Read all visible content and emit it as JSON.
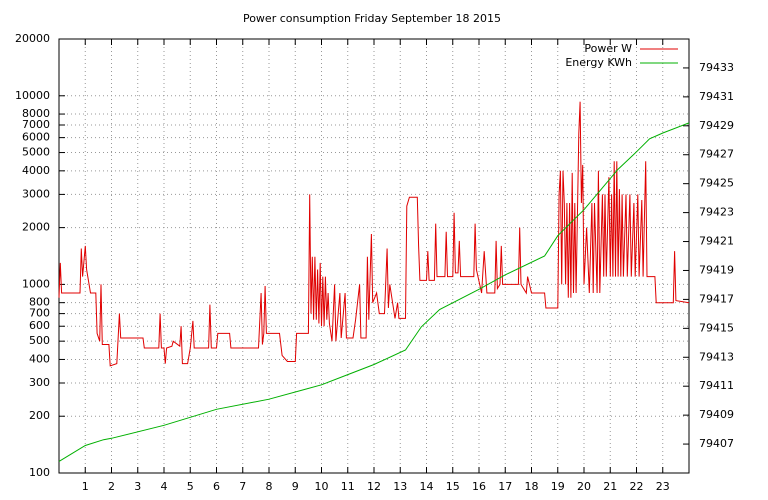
{
  "chart_data": {
    "type": "line",
    "title": "Power consumption Friday September 18 2015",
    "xlim": [
      0,
      24
    ],
    "xticks": [
      1,
      2,
      3,
      4,
      5,
      6,
      7,
      8,
      9,
      10,
      11,
      12,
      13,
      14,
      15,
      16,
      17,
      18,
      19,
      20,
      21,
      22,
      23
    ],
    "ylim": [
      100,
      20000
    ],
    "log_y": true,
    "yticks": [
      100,
      200,
      300,
      400,
      500,
      600,
      700,
      800,
      1000,
      2000,
      3000,
      4000,
      5000,
      6000,
      7000,
      8000,
      10000,
      20000
    ],
    "y2lim": [
      79405,
      79435
    ],
    "y2ticks": [
      79407,
      79409,
      79411,
      79413,
      79415,
      79417,
      79419,
      79421,
      79423,
      79425,
      79427,
      79429,
      79431,
      79433
    ],
    "grid": true,
    "legend": "top-right",
    "series": [
      {
        "name": "Power W",
        "color": "#e00000",
        "x": [
          0,
          0.05,
          0.1,
          0.8,
          0.85,
          0.9,
          1.0,
          1.05,
          1.2,
          1.4,
          1.45,
          1.55,
          1.6,
          1.65,
          1.9,
          1.95,
          2.2,
          2.3,
          2.35,
          3.2,
          3.25,
          3.8,
          3.85,
          3.9,
          4.0,
          4.05,
          4.1,
          4.3,
          4.35,
          4.6,
          4.65,
          4.7,
          4.9,
          5.0,
          5.1,
          5.15,
          5.7,
          5.75,
          5.8,
          6.0,
          6.05,
          6.5,
          6.55,
          7.6,
          7.7,
          7.75,
          7.8,
          7.85,
          7.9,
          8.4,
          8.5,
          8.7,
          9.0,
          9.05,
          9.5,
          9.55,
          9.6,
          9.65,
          9.7,
          9.75,
          9.8,
          9.85,
          9.9,
          9.95,
          10.0,
          10.05,
          10.1,
          10.15,
          10.2,
          10.25,
          10.3,
          10.4,
          10.5,
          10.55,
          10.7,
          10.75,
          10.9,
          10.95,
          11.2,
          11.3,
          11.45,
          11.5,
          11.7,
          11.75,
          11.8,
          11.9,
          11.95,
          12.1,
          12.2,
          12.4,
          12.5,
          12.55,
          12.6,
          12.8,
          12.9,
          12.95,
          13.2,
          13.25,
          13.35,
          13.65,
          13.7,
          13.75,
          14.0,
          14.05,
          14.1,
          14.3,
          14.35,
          14.4,
          14.7,
          14.75,
          14.8,
          15.0,
          15.05,
          15.1,
          15.2,
          15.25,
          15.3,
          15.8,
          15.85,
          15.9,
          16.1,
          16.2,
          16.3,
          16.6,
          16.65,
          16.7,
          16.8,
          16.85,
          16.9,
          17.5,
          17.55,
          17.6,
          17.8,
          17.85,
          18.0,
          18.5,
          18.55,
          19.0,
          19.05,
          19.1,
          19.15,
          19.2,
          19.25,
          19.3,
          19.35,
          19.4,
          19.45,
          19.5,
          19.55,
          19.6,
          19.65,
          19.7,
          19.8,
          19.85,
          19.9,
          19.95,
          20.0,
          20.1,
          20.2,
          20.3,
          20.35,
          20.4,
          20.5,
          20.55,
          20.6,
          20.7,
          20.75,
          20.8,
          20.85,
          20.95,
          21.0,
          21.05,
          21.1,
          21.15,
          21.2,
          21.25,
          21.3,
          21.35,
          21.4,
          21.45,
          21.5,
          21.6,
          21.65,
          21.75,
          21.8,
          21.9,
          21.95,
          22.05,
          22.1,
          22.2,
          22.25,
          22.35,
          22.4,
          22.7,
          22.75,
          23.4,
          23.45,
          23.5,
          24.0
        ],
        "values": [
          850,
          1300,
          900,
          900,
          1550,
          1100,
          1600,
          1200,
          900,
          900,
          550,
          500,
          1000,
          480,
          480,
          370,
          380,
          700,
          520,
          520,
          460,
          460,
          700,
          460,
          460,
          380,
          460,
          470,
          500,
          470,
          600,
          380,
          380,
          460,
          640,
          460,
          460,
          780,
          460,
          460,
          550,
          550,
          460,
          460,
          900,
          480,
          550,
          980,
          550,
          550,
          420,
          390,
          390,
          550,
          550,
          3000,
          700,
          1400,
          650,
          1400,
          650,
          1200,
          620,
          1300,
          600,
          1100,
          600,
          1100,
          650,
          900,
          620,
          500,
          1000,
          500,
          900,
          520,
          900,
          520,
          520,
          650,
          1000,
          520,
          520,
          1400,
          650,
          1850,
          800,
          900,
          700,
          700,
          1550,
          750,
          1000,
          660,
          800,
          660,
          660,
          2600,
          2900,
          2900,
          1600,
          1050,
          1050,
          1500,
          1050,
          1050,
          2100,
          1100,
          1100,
          1900,
          1100,
          1100,
          2400,
          1150,
          1150,
          1700,
          1100,
          1100,
          2100,
          1200,
          900,
          1500,
          900,
          900,
          1700,
          950,
          1000,
          1600,
          1000,
          1000,
          2000,
          1000,
          900,
          1100,
          900,
          900,
          750,
          750,
          3000,
          4000,
          1000,
          4000,
          2700,
          1000,
          2700,
          850,
          2700,
          850,
          3900,
          900,
          2700,
          900,
          6300,
          9300,
          2700,
          4300,
          1000,
          2000,
          900,
          2700,
          900,
          2700,
          900,
          4000,
          900,
          3000,
          1100,
          3000,
          1100,
          3700,
          1100,
          3000,
          1100,
          4500,
          1100,
          4500,
          1100,
          3200,
          1100,
          3000,
          1100,
          3000,
          1100,
          3000,
          1100,
          2700,
          1100,
          3000,
          1100,
          2800,
          1100,
          4500,
          1100,
          1100,
          800,
          800,
          1500,
          820,
          800
        ]
      },
      {
        "name": "Energy KWh",
        "color": "#00b000",
        "axis": "y2",
        "x": [
          0,
          1,
          1.7,
          2,
          4,
          6,
          8,
          9.4,
          10,
          11,
          12,
          13.2,
          13.8,
          14.5,
          16,
          17,
          18.5,
          19,
          20,
          21.3,
          22,
          22.5,
          23,
          24
        ],
        "values": [
          79405.8,
          79406.9,
          79407.3,
          79407.4,
          79408.3,
          79409.4,
          79410.1,
          79410.8,
          79411.1,
          79411.8,
          79412.5,
          79413.5,
          79415.1,
          79416.3,
          79417.7,
          79418.7,
          79420,
          79421.4,
          79423.2,
          79426,
          79427.2,
          79428.1,
          79428.5,
          79429.2
        ]
      }
    ]
  }
}
